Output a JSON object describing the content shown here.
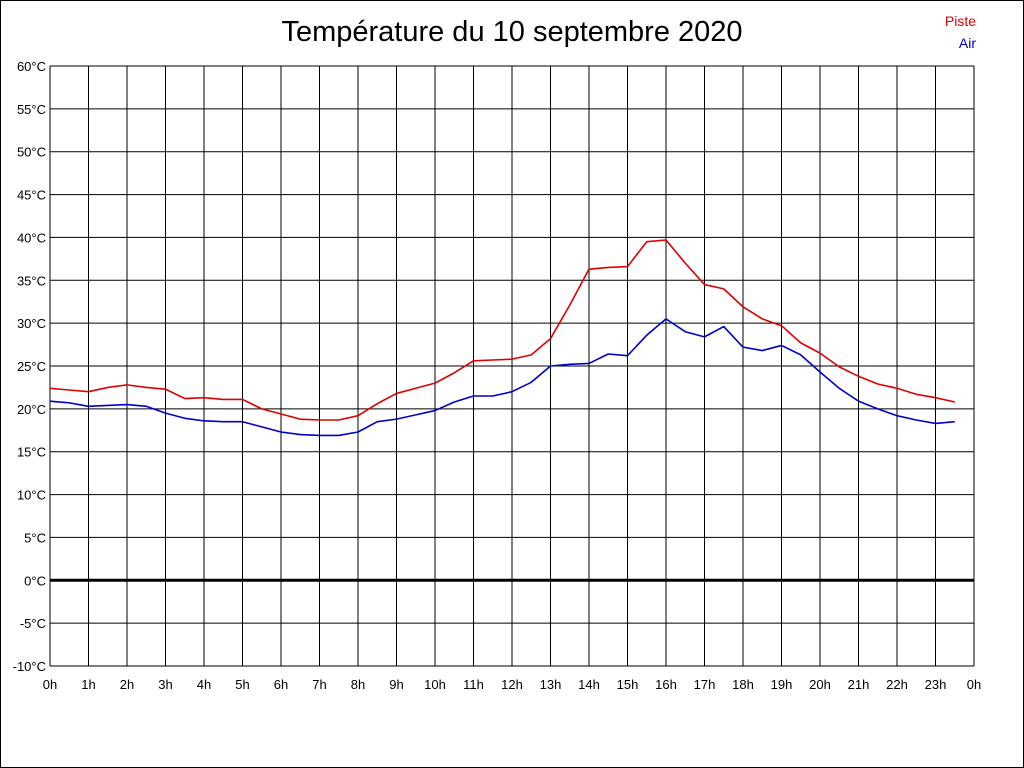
{
  "chart_data": {
    "type": "line",
    "title": "Température du 10 septembre 2020",
    "xlabel": "",
    "ylabel": "",
    "ylim": [
      -10,
      60
    ],
    "xlim": [
      0,
      24
    ],
    "grid": true,
    "legend_position": "top-right",
    "x_ticks": [
      "0h",
      "1h",
      "2h",
      "3h",
      "4h",
      "5h",
      "6h",
      "7h",
      "8h",
      "9h",
      "10h",
      "11h",
      "12h",
      "13h",
      "14h",
      "15h",
      "16h",
      "17h",
      "18h",
      "19h",
      "20h",
      "21h",
      "22h",
      "23h",
      "0h"
    ],
    "y_ticks": [
      "60°C",
      "55°C",
      "50°C",
      "45°C",
      "40°C",
      "35°C",
      "30°C",
      "25°C",
      "20°C",
      "15°C",
      "10°C",
      "5°C",
      "0°C",
      "-5°C",
      "-10°C"
    ],
    "y_tick_values": [
      60,
      55,
      50,
      45,
      40,
      35,
      30,
      25,
      20,
      15,
      10,
      5,
      0,
      -5,
      -10
    ],
    "x": [
      0,
      0.5,
      1,
      1.5,
      2,
      2.5,
      3,
      3.5,
      4,
      4.5,
      5,
      5.5,
      6,
      6.5,
      7,
      7.5,
      8,
      8.5,
      9,
      9.5,
      10,
      10.5,
      11,
      11.5,
      12,
      12.5,
      13,
      13.5,
      14,
      14.5,
      15,
      15.5,
      16,
      16.5,
      17,
      17.5,
      18,
      18.5,
      19,
      19.5,
      20,
      20.5,
      21,
      21.5,
      22,
      22.5,
      23,
      23.5
    ],
    "series": [
      {
        "name": "Piste",
        "color": "#dd0000",
        "values": [
          22.4,
          22.2,
          22.0,
          22.5,
          22.8,
          22.5,
          22.3,
          21.2,
          21.3,
          21.1,
          21.1,
          20.0,
          19.4,
          18.8,
          18.7,
          18.7,
          19.2,
          20.6,
          21.8,
          22.4,
          23.0,
          24.2,
          25.6,
          25.7,
          25.8,
          26.3,
          28.2,
          32.1,
          36.3,
          36.5,
          36.6,
          39.5,
          39.7,
          37.0,
          34.5,
          34.0,
          31.9,
          30.5,
          29.7,
          27.7,
          26.5,
          24.9,
          23.8,
          22.9,
          22.4,
          21.7,
          21.3,
          20.8
        ]
      },
      {
        "name": "Air",
        "color": "#0000cc",
        "values": [
          20.9,
          20.7,
          20.3,
          20.4,
          20.5,
          20.3,
          19.5,
          18.9,
          18.6,
          18.5,
          18.5,
          17.9,
          17.3,
          17.0,
          16.9,
          16.9,
          17.3,
          18.5,
          18.8,
          19.3,
          19.8,
          20.8,
          21.5,
          21.5,
          22.0,
          23.1,
          25.0,
          25.2,
          25.3,
          26.4,
          26.2,
          28.6,
          30.5,
          29.0,
          28.4,
          29.6,
          27.2,
          26.8,
          27.4,
          26.3,
          24.3,
          22.4,
          20.9,
          20.0,
          19.2,
          18.7,
          18.3,
          18.5
        ]
      }
    ]
  }
}
